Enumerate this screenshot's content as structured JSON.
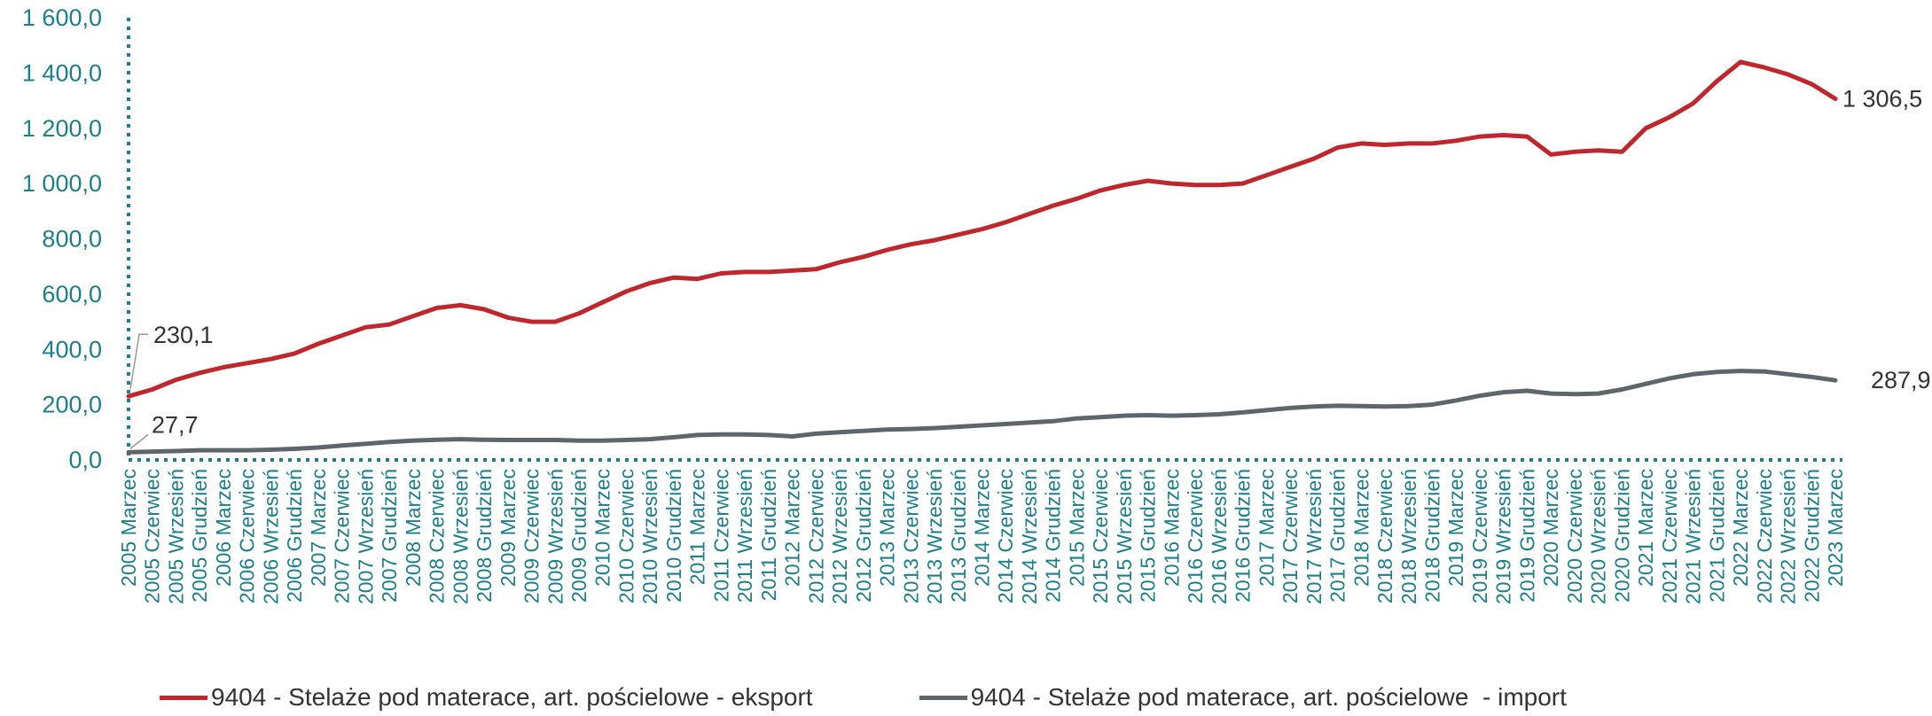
{
  "chart_data": {
    "type": "line",
    "ylim": [
      0,
      1600
    ],
    "yticks": [
      "0,0",
      "200,0",
      "400,0",
      "600,0",
      "800,0",
      "1 000,0",
      "1 200,0",
      "1 400,0",
      "1 600,0"
    ],
    "x_tick_labels": [
      "2005 Marzec",
      "2005 Czerwiec",
      "2005 Wrzesień",
      "2005 Grudzień",
      "2006 Marzec",
      "2006 Czerwiec",
      "2006 Wrzesień",
      "2006 Grudzień",
      "2007 Marzec",
      "2007 Czerwiec",
      "2007 Wrzesień",
      "2007 Grudzień",
      "2008 Marzec",
      "2008 Czerwiec",
      "2008 Wrzesień",
      "2008 Grudzień",
      "2009 Marzec",
      "2009 Czerwiec",
      "2009 Wrzesień",
      "2009 Grudzień",
      "2010 Marzec",
      "2010 Czerwiec",
      "2010 Wrzesień",
      "2010 Grudzień",
      "2011 Marzec",
      "2011 Czerwiec",
      "2011 Wrzesień",
      "2011 Grudzień",
      "2012 Marzec",
      "2012 Czerwiec",
      "2012 Wrzesień",
      "2012 Grudzień",
      "2013 Marzec",
      "2013 Czerwiec",
      "2013 Wrzesień",
      "2013 Grudzień",
      "2014 Marzec",
      "2014 Czerwiec",
      "2014 Wrzesień",
      "2014 Grudzień",
      "2015 Marzec",
      "2015 Czerwiec",
      "2015 Wrzesień",
      "2015 Grudzień",
      "2016 Marzec",
      "2016 Czerwiec",
      "2016 Wrzesień",
      "2016 Grudzień",
      "2017 Marzec",
      "2017 Czerwiec",
      "2017 Wrzesień",
      "2017 Grudzień",
      "2018 Marzec",
      "2018 Czerwiec",
      "2018 Wrzesień",
      "2018 Grudzień",
      "2019 Marzec",
      "2019 Czerwiec",
      "2019 Wrzesień",
      "2019 Grudzień",
      "2020 Marzec",
      "2020 Czerwiec",
      "2020 Wrzesień",
      "2020 Grudzień",
      "2021 Marzec",
      "2021 Czerwiec",
      "2021 Wrzesień",
      "2021 Grudzień",
      "2022 Marzec",
      "2022 Czerwiec",
      "2022 Wrzesień",
      "2022 Grudzień",
      "2023 Marzec"
    ],
    "series": [
      {
        "name": "9404 - Stelaże pod materace, art. pościelowe - eksport",
        "color": "#c0272d",
        "values": [
          230.1,
          255,
          290,
          315,
          335,
          350,
          365,
          385,
          420,
          450,
          480,
          490,
          520,
          550,
          560,
          545,
          515,
          500,
          500,
          530,
          570,
          610,
          640,
          660,
          655,
          675,
          680,
          680,
          685,
          690,
          715,
          735,
          760,
          780,
          795,
          815,
          835,
          860,
          890,
          920,
          945,
          975,
          995,
          1010,
          1000,
          995,
          995,
          1000,
          1030,
          1060,
          1090,
          1130,
          1145,
          1140,
          1145,
          1145,
          1155,
          1170,
          1175,
          1170,
          1105,
          1115,
          1120,
          1115,
          1200,
          1240,
          1290,
          1370,
          1440,
          1420,
          1395,
          1360,
          1306.5
        ],
        "start_label": "230,1",
        "end_label": "1 306,5"
      },
      {
        "name": "9404 - Stelaże pod materace, art. pościelowe  - import",
        "color": "#5f6669",
        "values": [
          27.7,
          30,
          32,
          35,
          35,
          35,
          37,
          40,
          45,
          52,
          58,
          65,
          70,
          73,
          75,
          73,
          72,
          72,
          72,
          70,
          70,
          72,
          75,
          82,
          90,
          92,
          92,
          90,
          85,
          95,
          100,
          105,
          110,
          112,
          115,
          120,
          125,
          130,
          135,
          140,
          150,
          155,
          160,
          162,
          160,
          162,
          165,
          172,
          180,
          188,
          193,
          196,
          195,
          193,
          195,
          200,
          215,
          232,
          245,
          250,
          240,
          238,
          240,
          255,
          275,
          295,
          310,
          318,
          322,
          320,
          310,
          300,
          287.9
        ],
        "start_label": "27,7",
        "end_label": "287,9"
      }
    ]
  }
}
